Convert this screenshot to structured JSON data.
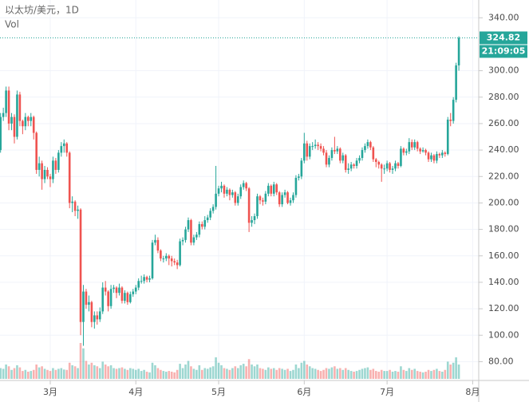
{
  "chart_data": {
    "type": "candlestick",
    "title": "以太坊/美元，1D",
    "volume_label": "Vol",
    "last_price_label": "324.82",
    "countdown": "21:09:05",
    "up_color": "#26a69a",
    "down_color": "#ef5350",
    "grid": true,
    "ylim": [
      70,
      345
    ],
    "yticks": [
      {
        "value": 80,
        "label": "80.00"
      },
      {
        "value": 100,
        "label": "100.00"
      },
      {
        "value": 120,
        "label": "120.00"
      },
      {
        "value": 140,
        "label": "140.00"
      },
      {
        "value": 160,
        "label": "160.00"
      },
      {
        "value": 180,
        "label": "180.00"
      },
      {
        "value": 200,
        "label": "200.00"
      },
      {
        "value": 220,
        "label": "220.00"
      },
      {
        "value": 240,
        "label": "240.00"
      },
      {
        "value": 260,
        "label": "260.00"
      },
      {
        "value": 280,
        "label": "280.00"
      },
      {
        "value": 300,
        "label": "300.00"
      },
      {
        "value": 340,
        "label": "340.00"
      }
    ],
    "xlim": [
      -0.2,
      173.2
    ],
    "xticks": [
      {
        "value": 18,
        "label": "3月"
      },
      {
        "value": 49,
        "label": "4月"
      },
      {
        "value": 79,
        "label": "5月"
      },
      {
        "value": 110,
        "label": "6月"
      },
      {
        "value": 140,
        "label": "7月"
      },
      {
        "value": 171,
        "label": "8月"
      }
    ],
    "candles": [
      [
        240,
        268,
        238,
        265
      ],
      [
        265,
        272,
        262,
        268
      ],
      [
        268,
        288,
        265,
        285
      ],
      [
        285,
        288,
        255,
        260
      ],
      [
        260,
        268,
        255,
        265
      ],
      [
        265,
        267,
        245,
        250
      ],
      [
        250,
        285,
        248,
        282
      ],
      [
        282,
        284,
        258,
        262
      ],
      [
        262,
        263,
        252,
        258
      ],
      [
        258,
        268,
        255,
        265
      ],
      [
        265,
        266,
        258,
        262
      ],
      [
        262,
        268,
        258,
        265
      ],
      [
        265,
        266,
        248,
        253
      ],
      [
        253,
        254,
        222,
        225
      ],
      [
        225,
        235,
        220,
        230
      ],
      [
        230,
        232,
        210,
        218
      ],
      [
        218,
        228,
        215,
        225
      ],
      [
        225,
        227,
        218,
        220
      ],
      [
        220,
        222,
        212,
        218
      ],
      [
        218,
        235,
        215,
        232
      ],
      [
        232,
        234,
        222,
        225
      ],
      [
        225,
        240,
        223,
        238
      ],
      [
        238,
        246,
        235,
        243
      ],
      [
        243,
        248,
        238,
        245
      ],
      [
        245,
        246,
        235,
        238
      ],
      [
        238,
        239,
        196,
        200
      ],
      [
        200,
        205,
        193,
        201
      ],
      [
        201,
        202,
        190,
        194
      ],
      [
        194,
        198,
        188,
        195
      ],
      [
        195,
        196,
        100,
        110
      ],
      [
        110,
        138,
        92,
        133
      ],
      [
        133,
        135,
        120,
        123
      ],
      [
        123,
        130,
        118,
        125
      ],
      [
        125,
        126,
        106,
        110
      ],
      [
        110,
        118,
        105,
        115
      ],
      [
        115,
        118,
        108,
        112
      ],
      [
        112,
        121,
        110,
        118
      ],
      [
        118,
        140,
        116,
        136
      ],
      [
        136,
        141,
        130,
        133
      ],
      [
        133,
        134,
        118,
        122
      ],
      [
        122,
        138,
        120,
        135
      ],
      [
        135,
        138,
        132,
        136
      ],
      [
        136,
        137,
        128,
        132
      ],
      [
        132,
        139,
        130,
        136
      ],
      [
        136,
        137,
        124,
        126
      ],
      [
        126,
        134,
        124,
        132
      ],
      [
        132,
        133,
        123,
        125
      ],
      [
        125,
        133,
        124,
        131
      ],
      [
        131,
        135,
        129,
        133
      ],
      [
        133,
        138,
        131,
        136
      ],
      [
        136,
        143,
        134,
        141
      ],
      [
        141,
        145,
        139,
        141
      ],
      [
        141,
        146,
        139,
        144
      ],
      [
        144,
        145,
        140,
        142
      ],
      [
        142,
        145,
        140,
        143
      ],
      [
        143,
        172,
        142,
        170
      ],
      [
        170,
        176,
        168,
        172
      ],
      [
        172,
        174,
        162,
        164
      ],
      [
        164,
        165,
        156,
        158
      ],
      [
        158,
        160,
        155,
        158
      ],
      [
        158,
        162,
        156,
        160
      ],
      [
        160,
        161,
        153,
        158
      ],
      [
        158,
        160,
        152,
        156
      ],
      [
        156,
        158,
        153,
        155
      ],
      [
        155,
        157,
        150,
        153
      ],
      [
        153,
        173,
        152,
        171
      ],
      [
        171,
        174,
        168,
        172
      ],
      [
        172,
        182,
        170,
        180
      ],
      [
        180,
        189,
        178,
        187
      ],
      [
        187,
        188,
        168,
        170
      ],
      [
        170,
        176,
        168,
        174
      ],
      [
        174,
        178,
        172,
        176
      ],
      [
        176,
        186,
        174,
        184
      ],
      [
        184,
        186,
        180,
        182
      ],
      [
        182,
        190,
        180,
        187
      ],
      [
        187,
        191,
        185,
        189
      ],
      [
        189,
        196,
        187,
        194
      ],
      [
        194,
        199,
        192,
        197
      ],
      [
        197,
        228,
        195,
        207
      ],
      [
        207,
        213,
        205,
        211
      ],
      [
        211,
        216,
        208,
        213
      ],
      [
        213,
        214,
        204,
        207
      ],
      [
        207,
        212,
        205,
        210
      ],
      [
        210,
        211,
        202,
        206
      ],
      [
        206,
        210,
        204,
        208
      ],
      [
        208,
        209,
        198,
        200
      ],
      [
        200,
        207,
        198,
        205
      ],
      [
        205,
        214,
        203,
        212
      ],
      [
        212,
        217,
        210,
        215
      ],
      [
        215,
        216,
        209,
        211
      ],
      [
        211,
        212,
        178,
        185
      ],
      [
        185,
        190,
        182,
        187
      ],
      [
        187,
        192,
        184,
        190
      ],
      [
        190,
        207,
        188,
        205
      ],
      [
        205,
        206,
        199,
        202
      ],
      [
        202,
        204,
        198,
        201
      ],
      [
        201,
        209,
        199,
        207
      ],
      [
        207,
        215,
        205,
        213
      ],
      [
        213,
        214,
        205,
        207
      ],
      [
        207,
        216,
        205,
        214
      ],
      [
        214,
        215,
        206,
        208
      ],
      [
        208,
        209,
        197,
        199
      ],
      [
        199,
        208,
        197,
        206
      ],
      [
        206,
        210,
        204,
        208
      ],
      [
        208,
        209,
        199,
        200
      ],
      [
        200,
        204,
        198,
        202
      ],
      [
        202,
        208,
        200,
        206
      ],
      [
        206,
        221,
        204,
        219
      ],
      [
        219,
        222,
        217,
        220
      ],
      [
        220,
        234,
        218,
        232
      ],
      [
        232,
        253,
        230,
        245
      ],
      [
        245,
        247,
        232,
        235
      ],
      [
        235,
        245,
        233,
        243
      ],
      [
        243,
        246,
        240,
        243
      ],
      [
        243,
        248,
        241,
        244
      ],
      [
        244,
        246,
        240,
        243
      ],
      [
        243,
        245,
        239,
        241
      ],
      [
        241,
        243,
        236,
        238
      ],
      [
        238,
        240,
        227,
        229
      ],
      [
        229,
        236,
        227,
        234
      ],
      [
        234,
        242,
        232,
        240
      ],
      [
        240,
        250,
        237,
        239
      ],
      [
        239,
        243,
        237,
        241
      ],
      [
        241,
        242,
        230,
        232
      ],
      [
        232,
        238,
        230,
        236
      ],
      [
        236,
        237,
        223,
        225
      ],
      [
        225,
        230,
        222,
        226
      ],
      [
        226,
        231,
        224,
        229
      ],
      [
        229,
        230,
        226,
        228
      ],
      [
        228,
        234,
        226,
        232
      ],
      [
        232,
        236,
        230,
        234
      ],
      [
        234,
        242,
        232,
        240
      ],
      [
        240,
        245,
        238,
        243
      ],
      [
        243,
        248,
        241,
        246
      ],
      [
        246,
        247,
        240,
        242
      ],
      [
        242,
        243,
        231,
        233
      ],
      [
        233,
        234,
        227,
        231
      ],
      [
        231,
        232,
        226,
        229
      ],
      [
        229,
        230,
        216,
        226
      ],
      [
        226,
        229,
        222,
        226
      ],
      [
        226,
        232,
        224,
        230
      ],
      [
        230,
        231,
        223,
        225
      ],
      [
        225,
        228,
        222,
        226
      ],
      [
        226,
        232,
        224,
        230
      ],
      [
        230,
        231,
        226,
        228
      ],
      [
        228,
        243,
        227,
        241
      ],
      [
        241,
        242,
        236,
        238
      ],
      [
        238,
        241,
        236,
        239
      ],
      [
        239,
        249,
        237,
        246
      ],
      [
        246,
        248,
        240,
        242
      ],
      [
        242,
        248,
        240,
        246
      ],
      [
        246,
        247,
        239,
        241
      ],
      [
        241,
        242,
        237,
        239
      ],
      [
        239,
        242,
        238,
        240
      ],
      [
        240,
        241,
        236,
        238
      ],
      [
        238,
        239,
        231,
        233
      ],
      [
        233,
        238,
        231,
        236
      ],
      [
        236,
        237,
        230,
        232
      ],
      [
        232,
        239,
        230,
        237
      ],
      [
        237,
        238,
        234,
        236
      ],
      [
        236,
        240,
        234,
        238
      ],
      [
        238,
        239,
        235,
        237
      ],
      [
        237,
        265,
        236,
        263
      ],
      [
        263,
        268,
        258,
        262
      ],
      [
        262,
        280,
        260,
        278
      ],
      [
        278,
        306,
        276,
        304
      ],
      [
        304,
        326,
        300,
        324.82
      ]
    ],
    "volume": [
      30,
      28,
      40,
      35,
      25,
      30,
      38,
      32,
      22,
      25,
      20,
      22,
      25,
      40,
      32,
      35,
      28,
      25,
      22,
      30,
      25,
      28,
      30,
      26,
      25,
      45,
      38,
      35,
      30,
      100,
      85,
      50,
      40,
      45,
      38,
      35,
      30,
      48,
      40,
      35,
      38,
      30,
      28,
      30,
      32,
      28,
      25,
      30,
      28,
      25,
      28,
      22,
      25,
      20,
      18,
      45,
      38,
      30,
      25,
      22,
      20,
      22,
      20,
      18,
      25,
      42,
      30,
      40,
      50,
      35,
      28,
      25,
      38,
      25,
      30,
      28,
      32,
      35,
      60,
      45,
      38,
      30,
      28,
      25,
      30,
      35,
      30,
      38,
      42,
      35,
      55,
      40,
      35,
      40,
      30,
      28,
      25,
      32,
      28,
      30,
      25,
      30,
      28,
      25,
      28,
      22,
      25,
      40,
      30,
      45,
      50,
      40,
      35,
      30,
      28,
      25,
      22,
      25,
      30,
      28,
      32,
      35,
      28,
      30,
      25,
      30,
      25,
      22,
      20,
      22,
      25,
      28,
      30,
      32,
      25,
      28,
      22,
      20,
      25,
      22,
      22,
      25,
      20,
      22,
      20,
      35,
      25,
      22,
      30,
      25,
      28,
      22,
      20,
      18,
      20,
      25,
      22,
      25,
      28,
      22,
      20,
      25,
      48,
      40,
      45,
      60,
      40
    ]
  }
}
